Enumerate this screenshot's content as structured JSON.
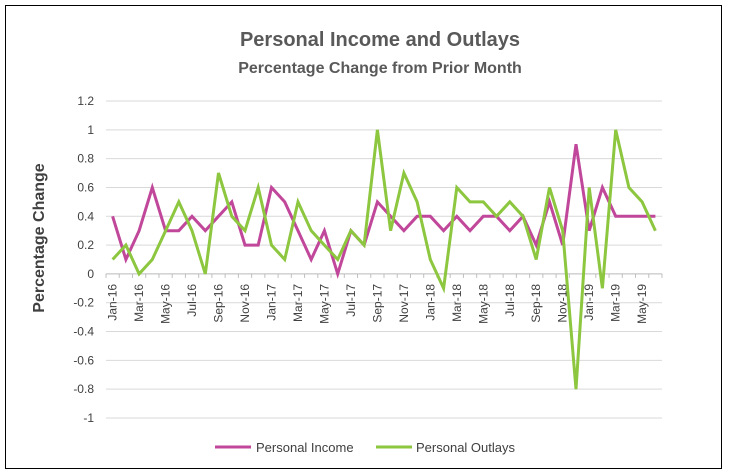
{
  "chart_data": {
    "type": "line",
    "title": "Personal Income and Outlays",
    "subtitle": "Percentage Change from Prior Month",
    "xlabel": "",
    "ylabel": "Percentage Change",
    "ylim": [
      -1,
      1.2
    ],
    "yticks": [
      "1.2",
      "1",
      "0.8",
      "0.6",
      "0.4",
      "0.2",
      "0",
      "-0.2",
      "-0.4",
      "-0.6",
      "-0.8",
      "-1"
    ],
    "grid": true,
    "legend_position": "bottom",
    "x": [
      "Jan-16",
      "Feb-16",
      "Mar-16",
      "Apr-16",
      "May-16",
      "Jun-16",
      "Jul-16",
      "Aug-16",
      "Sep-16",
      "Oct-16",
      "Nov-16",
      "Dec-16",
      "Jan-17",
      "Feb-17",
      "Mar-17",
      "Apr-17",
      "May-17",
      "Jun-17",
      "Jul-17",
      "Aug-17",
      "Sep-17",
      "Oct-17",
      "Nov-17",
      "Dec-17",
      "Jan-18",
      "Feb-18",
      "Mar-18",
      "Apr-18",
      "May-18",
      "Jun-18",
      "Jul-18",
      "Aug-18",
      "Sep-18",
      "Oct-18",
      "Nov-18",
      "Dec-18",
      "Jan-19",
      "Feb-19",
      "Mar-19",
      "Apr-19",
      "May-19",
      "Jun-19"
    ],
    "xtick_labels": [
      "Jan-16",
      "Mar-16",
      "May-16",
      "Jul-16",
      "Sep-16",
      "Nov-16",
      "Jan-17",
      "Mar-17",
      "May-17",
      "Jul-17",
      "Sep-17",
      "Nov-17",
      "Jan-18",
      "Mar-18",
      "May-18",
      "Jul-18",
      "Sep-18",
      "Nov-18",
      "Jan-19",
      "Mar-19",
      "May-19"
    ],
    "series": [
      {
        "name": "Personal Income",
        "color": "#c0479a",
        "values": [
          0.4,
          0.1,
          0.3,
          0.6,
          0.3,
          0.3,
          0.4,
          0.3,
          0.4,
          0.5,
          0.2,
          0.2,
          0.6,
          0.5,
          0.3,
          0.1,
          0.3,
          0.0,
          0.3,
          0.2,
          0.5,
          0.4,
          0.3,
          0.4,
          0.4,
          0.3,
          0.4,
          0.3,
          0.4,
          0.4,
          0.3,
          0.4,
          0.2,
          0.5,
          0.2,
          0.9,
          0.3,
          0.6,
          0.4,
          0.4,
          0.4,
          0.4
        ]
      },
      {
        "name": "Personal Outlays",
        "color": "#8dc63f",
        "values": [
          0.1,
          0.2,
          0.0,
          0.1,
          0.3,
          0.5,
          0.3,
          0.0,
          0.7,
          0.4,
          0.3,
          0.6,
          0.2,
          0.1,
          0.5,
          0.3,
          0.2,
          0.1,
          0.3,
          0.2,
          1.0,
          0.3,
          0.7,
          0.5,
          0.1,
          -0.1,
          0.6,
          0.5,
          0.5,
          0.4,
          0.5,
          0.4,
          0.1,
          0.6,
          0.3,
          -0.8,
          0.6,
          -0.1,
          1.0,
          0.6,
          0.5,
          0.3
        ]
      }
    ]
  }
}
